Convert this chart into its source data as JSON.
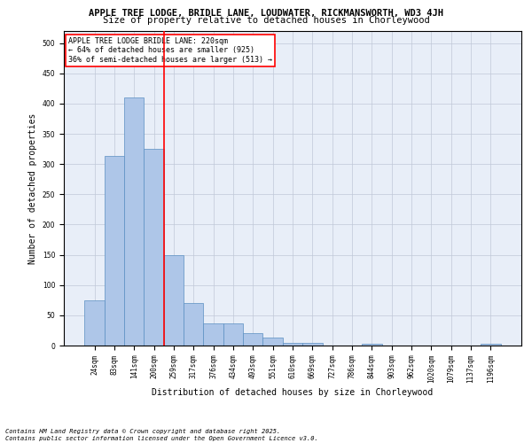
{
  "title": "APPLE TREE LODGE, BRIDLE LANE, LOUDWATER, RICKMANSWORTH, WD3 4JH",
  "subtitle": "Size of property relative to detached houses in Chorleywood",
  "xlabel": "Distribution of detached houses by size in Chorleywood",
  "ylabel": "Number of detached properties",
  "categories": [
    "24sqm",
    "83sqm",
    "141sqm",
    "200sqm",
    "259sqm",
    "317sqm",
    "376sqm",
    "434sqm",
    "493sqm",
    "551sqm",
    "610sqm",
    "669sqm",
    "727sqm",
    "786sqm",
    "844sqm",
    "903sqm",
    "962sqm",
    "1020sqm",
    "1079sqm",
    "1137sqm",
    "1196sqm"
  ],
  "values": [
    75,
    313,
    410,
    325,
    150,
    70,
    37,
    37,
    20,
    13,
    5,
    5,
    0,
    0,
    3,
    0,
    0,
    0,
    0,
    0,
    3
  ],
  "bar_color": "#aec6e8",
  "bar_edge_color": "#5a8fc2",
  "vline_x": 3.5,
  "vline_color": "red",
  "annotation_text": "APPLE TREE LODGE BRIDLE LANE: 220sqm\n← 64% of detached houses are smaller (925)\n36% of semi-detached houses are larger (513) →",
  "annotation_box_color": "white",
  "annotation_box_edge_color": "red",
  "ylim": [
    0,
    520
  ],
  "yticks": [
    0,
    50,
    100,
    150,
    200,
    250,
    300,
    350,
    400,
    450,
    500
  ],
  "grid_color": "#c0c8d8",
  "bg_color": "#e8eef8",
  "footer_text": "Contains HM Land Registry data © Crown copyright and database right 2025.\nContains public sector information licensed under the Open Government Licence v3.0.",
  "title_fontsize": 7.5,
  "subtitle_fontsize": 7.5,
  "xlabel_fontsize": 7,
  "ylabel_fontsize": 7,
  "tick_fontsize": 5.5,
  "annotation_fontsize": 6,
  "footer_fontsize": 5
}
